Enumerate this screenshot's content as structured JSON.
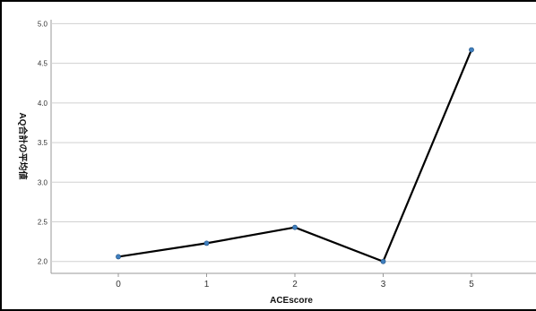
{
  "chart_data": {
    "type": "line",
    "categories": [
      "0",
      "1",
      "2",
      "3",
      "5"
    ],
    "values": [
      2.06,
      2.23,
      2.43,
      2.0,
      4.67
    ],
    "xlabel": "ACEscore",
    "ylabel": "AQ合計の平均値",
    "ylim": [
      1.85,
      5.05
    ],
    "yticks": [
      "2.0",
      "2.5",
      "3.0",
      "3.5",
      "4.0",
      "4.5",
      "5.0"
    ],
    "grid": "horizontal",
    "colors": {
      "line": "#000000",
      "marker": "#3f7fbf",
      "grid": "#d0d0d0"
    }
  }
}
